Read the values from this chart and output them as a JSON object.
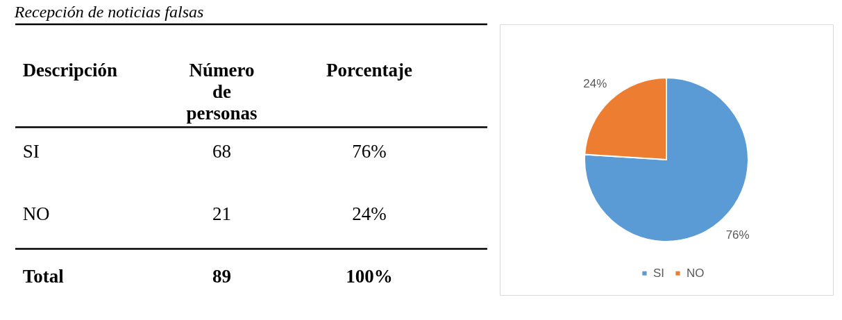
{
  "chart_data": [
    {
      "type": "other",
      "data_labels": true,
      "title": "Recepción de noticias falsas",
      "xlabel": "Descripción",
      "categories": [
        "SI",
        "NO",
        "Total"
      ],
      "series": [
        {
          "name": "Número de personas",
          "values": [
            68,
            21,
            89
          ]
        },
        {
          "name": "Porcentaje",
          "values": [
            76,
            24,
            100
          ],
          "value_labels": [
            "76%",
            "24%",
            "100%"
          ]
        }
      ]
    },
    {
      "type": "pie",
      "categories": [
        "SI",
        "NO"
      ],
      "values": [
        76,
        24
      ],
      "colors": [
        "#5b9bd5",
        "#ed7d31"
      ],
      "value_labels": [
        "76%",
        "24%"
      ],
      "legend": "bottom"
    }
  ]
}
